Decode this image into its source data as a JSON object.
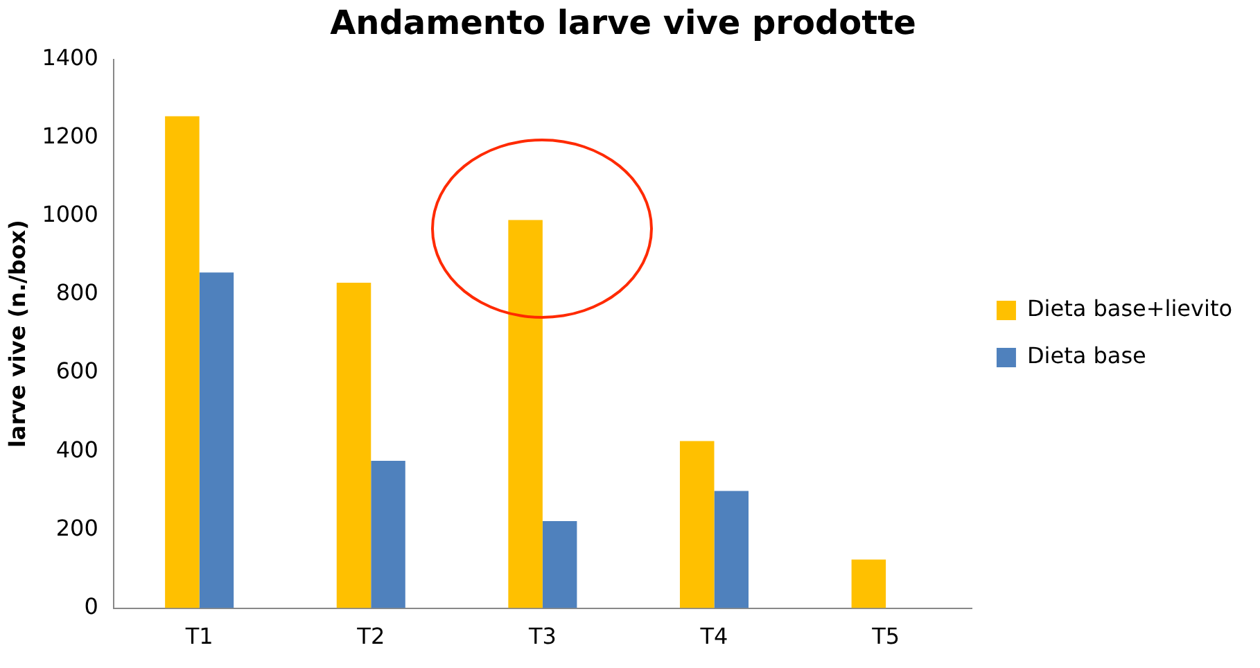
{
  "chart_data": {
    "type": "bar",
    "title": "Andamento larve vive prodotte",
    "ylabel": "larve vive (n./box)",
    "categories": [
      "T1",
      "T2",
      "T3",
      "T4",
      "T5"
    ],
    "series": [
      {
        "name": "Dieta base+lievito",
        "color": "#ffc000",
        "values": [
          1255,
          830,
          990,
          426,
          124
        ]
      },
      {
        "name": "Dieta base",
        "color": "#4f81bd",
        "values": [
          856,
          376,
          222,
          299,
          null
        ]
      }
    ],
    "ylim": [
      0,
      1400
    ],
    "yticks": [
      0,
      200,
      400,
      600,
      800,
      1000,
      1200,
      1400
    ],
    "grid": false,
    "legend": "right"
  }
}
